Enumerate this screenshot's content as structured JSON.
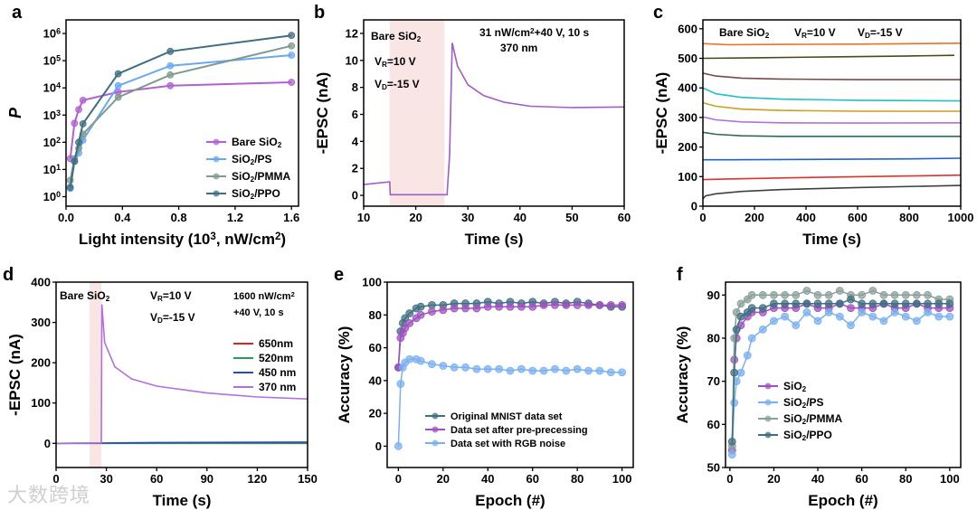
{
  "watermark": "大数跨境",
  "chart_data": [
    {
      "panel": "a",
      "type": "line",
      "xlabel": "Light intensity (10^{3}, nW/cm^{2})",
      "ylabel": "P",
      "xlim": [
        0.0,
        1.65
      ],
      "ylim_log10": [
        -0.35,
        6.5
      ],
      "log_y": true,
      "xticks": [
        0.0,
        0.4,
        0.8,
        1.2,
        1.6
      ],
      "xtick_labels": [
        "0.0",
        "0.4",
        "0.8",
        "1.2",
        "1.6"
      ],
      "yticks": [
        0,
        1,
        2,
        3,
        4,
        5,
        6
      ],
      "ytick_labels": [
        "10^{0}",
        "10^{1}",
        "10^{2}",
        "10^{3}",
        "10^{4}",
        "10^{5}",
        "10^{6}"
      ],
      "legend": "bottom-right",
      "series": [
        {
          "name": "Bare SiO_{2}",
          "color": "#b060d0",
          "x": [
            0.03,
            0.06,
            0.09,
            0.12,
            0.37,
            0.74,
            1.6
          ],
          "y": [
            25,
            500,
            1600,
            3500,
            7000,
            12000,
            16000
          ]
        },
        {
          "name": "SiO_{2}/PS",
          "color": "#6aa8f0",
          "x": [
            0.03,
            0.06,
            0.09,
            0.12,
            0.37,
            0.74,
            1.6
          ],
          "y": [
            2,
            20,
            40,
            120,
            12000,
            65000,
            160000
          ]
        },
        {
          "name": "SiO_{2}/PMMA",
          "color": "#7f9a90",
          "x": [
            0.03,
            0.06,
            0.09,
            0.12,
            0.37,
            0.74,
            1.6
          ],
          "y": [
            4,
            25,
            60,
            200,
            4500,
            30000,
            350000
          ]
        },
        {
          "name": "SiO_{2}/PPO",
          "color": "#3e6f80",
          "x": [
            0.03,
            0.06,
            0.09,
            0.12,
            0.37,
            0.74,
            1.6
          ],
          "y": [
            2.2,
            20,
            100,
            480,
            33000,
            220000,
            850000
          ]
        }
      ]
    },
    {
      "panel": "b",
      "type": "line",
      "xlabel": "Time (s)",
      "ylabel": "-EPSC (nA)",
      "xlim": [
        10,
        60
      ],
      "ylim": [
        -0.8,
        13
      ],
      "xticks": [
        10,
        20,
        30,
        40,
        50,
        60
      ],
      "yticks": [
        0,
        2,
        4,
        6,
        8,
        10,
        12
      ],
      "shade": [
        15,
        25.5
      ],
      "annotations": [
        "Bare SiO_{2}",
        "V_{R}=10 V",
        "V_{D}=-15 V",
        "31 nW/cm^{2}+40 V, 10 s",
        "370 nm"
      ],
      "series": [
        {
          "name": "370 nm",
          "color": "#a05cc8",
          "x": [
            10,
            15,
            15.1,
            25.5,
            26,
            26.5,
            27,
            28,
            30,
            33,
            37,
            42,
            50,
            60
          ],
          "y": [
            0.8,
            1.0,
            0.05,
            0.05,
            0.05,
            3,
            11.3,
            9.6,
            8.2,
            7.4,
            6.9,
            6.6,
            6.5,
            6.55
          ]
        }
      ]
    },
    {
      "panel": "c",
      "type": "line",
      "xlabel": "Time (s)",
      "ylabel": "-EPSC (nA)",
      "xlim": [
        0,
        1000
      ],
      "ylim": [
        0,
        630
      ],
      "xticks": [
        0,
        200,
        400,
        600,
        800,
        1000
      ],
      "yticks": [
        0,
        100,
        200,
        300,
        400,
        500,
        600
      ],
      "annotations": [
        "Bare SiO_{2}",
        "V_{R}=10 V",
        "V_{D}=-15 V"
      ],
      "series": [
        {
          "color": "#f07020",
          "x": [
            0,
            100,
            300,
            600,
            1000
          ],
          "y": [
            550,
            546,
            547,
            548,
            551
          ]
        },
        {
          "color": "#4a4a18",
          "x": [
            0,
            200,
            500,
            800,
            975
          ],
          "y": [
            500,
            502,
            505,
            508,
            510
          ]
        },
        {
          "color": "#7a4a4a",
          "x": [
            0,
            50,
            150,
            300,
            600,
            1000
          ],
          "y": [
            450,
            440,
            433,
            430,
            428,
            428
          ]
        },
        {
          "color": "#20c0c8",
          "x": [
            0,
            50,
            150,
            300,
            600,
            1000
          ],
          "y": [
            400,
            380,
            368,
            362,
            358,
            356
          ]
        },
        {
          "color": "#c8a020",
          "x": [
            0,
            50,
            150,
            300,
            600,
            1000
          ],
          "y": [
            350,
            338,
            328,
            324,
            321,
            321
          ]
        },
        {
          "color": "#b070e0",
          "x": [
            0,
            50,
            150,
            300,
            600,
            1000
          ],
          "y": [
            302,
            292,
            285,
            282,
            281,
            282
          ]
        },
        {
          "color": "#2e6a52",
          "x": [
            0,
            50,
            150,
            300,
            600,
            1000
          ],
          "y": [
            250,
            243,
            238,
            236,
            236,
            236
          ]
        },
        {
          "color": "#2060d0",
          "x": [
            0,
            100,
            400,
            800,
            1000
          ],
          "y": [
            157,
            157,
            158,
            160,
            162
          ]
        },
        {
          "color": "#e03030",
          "x": [
            0,
            100,
            400,
            800,
            1000
          ],
          "y": [
            90,
            92,
            97,
            102,
            105
          ]
        },
        {
          "color": "#404040",
          "x": [
            0,
            10,
            50,
            150,
            300,
            600,
            1000
          ],
          "y": [
            25,
            35,
            42,
            50,
            56,
            63,
            70
          ]
        }
      ]
    },
    {
      "panel": "d",
      "type": "line",
      "xlabel": "Time (s)",
      "ylabel": "-EPSC (nA)",
      "xlim": [
        0,
        150
      ],
      "ylim": [
        -60,
        400
      ],
      "xticks": [
        0,
        30,
        60,
        90,
        120,
        150
      ],
      "yticks": [
        0,
        100,
        200,
        300,
        400
      ],
      "shade": [
        20,
        27
      ],
      "annotations": [
        "Bare SiO_{2}",
        "V_{R}=10 V",
        "V_{D}=-15 V",
        "1600 nW/cm^{2}",
        "+40 V, 10 s"
      ],
      "legend": "right",
      "series": [
        {
          "name": "650nm",
          "color": "#e02020",
          "x": [
            0,
            150
          ],
          "y": [
            0,
            0
          ]
        },
        {
          "name": "520nm",
          "color": "#20a060",
          "x": [
            0,
            150
          ],
          "y": [
            0,
            0.5
          ]
        },
        {
          "name": "450 nm",
          "color": "#2050c0",
          "x": [
            0,
            27,
            60,
            150
          ],
          "y": [
            0,
            0.5,
            2,
            3
          ]
        },
        {
          "name": "370 nm",
          "color": "#b070e0",
          "x": [
            0,
            27,
            27.3,
            29,
            35,
            45,
            60,
            90,
            120,
            150
          ],
          "y": [
            0,
            1,
            345,
            250,
            190,
            160,
            142,
            125,
            115,
            110
          ]
        }
      ]
    },
    {
      "panel": "e",
      "type": "scatter",
      "xlabel": "Epoch (#)",
      "ylabel": "Accuracy (%)",
      "xlim": [
        -5,
        105
      ],
      "ylim": [
        -13,
        100
      ],
      "xticks": [
        0,
        20,
        40,
        60,
        80,
        100
      ],
      "yticks": [
        0,
        20,
        40,
        60,
        80,
        100
      ],
      "legend": "bottom-right",
      "series": [
        {
          "name": "Original MNIST data set",
          "color": "#3e6f80",
          "x": [
            0,
            1,
            2,
            3,
            5,
            8,
            10,
            15,
            20,
            25,
            30,
            35,
            40,
            45,
            50,
            55,
            60,
            65,
            70,
            75,
            80,
            85,
            90,
            95,
            100
          ],
          "y": [
            48,
            70,
            75,
            78,
            81,
            84,
            85,
            86,
            86,
            87,
            87,
            87,
            88,
            87,
            88,
            87,
            88,
            87,
            88,
            87,
            88,
            87,
            86,
            85,
            85
          ]
        },
        {
          "name": "Data set after pre-precessing",
          "color": "#a050c0",
          "x": [
            0,
            1,
            2,
            3,
            5,
            8,
            10,
            15,
            20,
            25,
            30,
            35,
            40,
            45,
            50,
            55,
            60,
            65,
            70,
            75,
            80,
            85,
            90,
            95,
            100
          ],
          "y": [
            48,
            66,
            69,
            72,
            75,
            78,
            80,
            82,
            83,
            84,
            84,
            84,
            85,
            85,
            85,
            85,
            85,
            86,
            86,
            86,
            86,
            86,
            86,
            86,
            86
          ]
        },
        {
          "name": "Data set with RGB noise",
          "color": "#7ab0f0",
          "x": [
            0,
            1,
            2,
            3,
            5,
            8,
            10,
            15,
            20,
            25,
            30,
            35,
            40,
            45,
            50,
            55,
            60,
            65,
            70,
            75,
            80,
            85,
            90,
            95,
            100
          ],
          "y": [
            0,
            38,
            48,
            51,
            53,
            53,
            52,
            50,
            49,
            48,
            48,
            47,
            47,
            47,
            46,
            47,
            46,
            46,
            47,
            46,
            47,
            46,
            46,
            45,
            45
          ]
        }
      ]
    },
    {
      "panel": "f",
      "type": "scatter",
      "xlabel": "Epoch (#)",
      "ylabel": "Accuracy (%)",
      "xlim": [
        -2,
        105
      ],
      "ylim": [
        50,
        93
      ],
      "xticks": [
        0,
        20,
        40,
        60,
        80,
        100
      ],
      "yticks": [
        50,
        60,
        70,
        80,
        90
      ],
      "legend": "bottom-left",
      "series": [
        {
          "name": "SiO_{2}",
          "color": "#a050c0",
          "x": [
            1,
            2,
            3,
            5,
            8,
            10,
            15,
            20,
            25,
            30,
            35,
            40,
            45,
            50,
            55,
            60,
            65,
            70,
            75,
            80,
            85,
            90,
            95,
            100
          ],
          "y": [
            54,
            75,
            80,
            83,
            85,
            86,
            86,
            87,
            87,
            87,
            88,
            87,
            87,
            88,
            87,
            87,
            87,
            88,
            87,
            87,
            88,
            87,
            87,
            87
          ]
        },
        {
          "name": "SiO_{2}/PS",
          "color": "#7ab0f0",
          "x": [
            1,
            2,
            3,
            5,
            8,
            10,
            15,
            20,
            25,
            30,
            35,
            40,
            45,
            50,
            55,
            60,
            65,
            70,
            75,
            80,
            85,
            90,
            95,
            100
          ],
          "y": [
            53,
            65,
            70,
            72,
            76,
            80,
            82,
            84,
            85,
            83,
            86,
            84,
            86,
            85,
            83,
            86,
            85,
            84,
            86,
            85,
            84,
            86,
            85,
            85
          ]
        },
        {
          "name": "SiO_{2}/PMMA",
          "color": "#8aa098",
          "x": [
            1,
            2,
            3,
            5,
            8,
            10,
            15,
            20,
            25,
            30,
            35,
            40,
            45,
            50,
            55,
            60,
            65,
            70,
            75,
            80,
            85,
            90,
            95,
            100
          ],
          "y": [
            55,
            80,
            86,
            88,
            89,
            90,
            90,
            90,
            90,
            90,
            91,
            90,
            90,
            91,
            90,
            90,
            91,
            90,
            90,
            90,
            90,
            90,
            89,
            89
          ]
        },
        {
          "name": "SiO_{2}/PPO",
          "color": "#3e6f80",
          "x": [
            1,
            2,
            3,
            5,
            8,
            10,
            15,
            20,
            25,
            30,
            35,
            40,
            45,
            50,
            55,
            60,
            65,
            70,
            75,
            80,
            85,
            90,
            95,
            100
          ],
          "y": [
            56,
            72,
            82,
            85,
            86,
            87,
            87,
            88,
            88,
            88,
            88,
            88,
            88,
            88,
            89,
            88,
            88,
            88,
            88,
            88,
            88,
            88,
            88,
            88
          ]
        }
      ]
    }
  ]
}
